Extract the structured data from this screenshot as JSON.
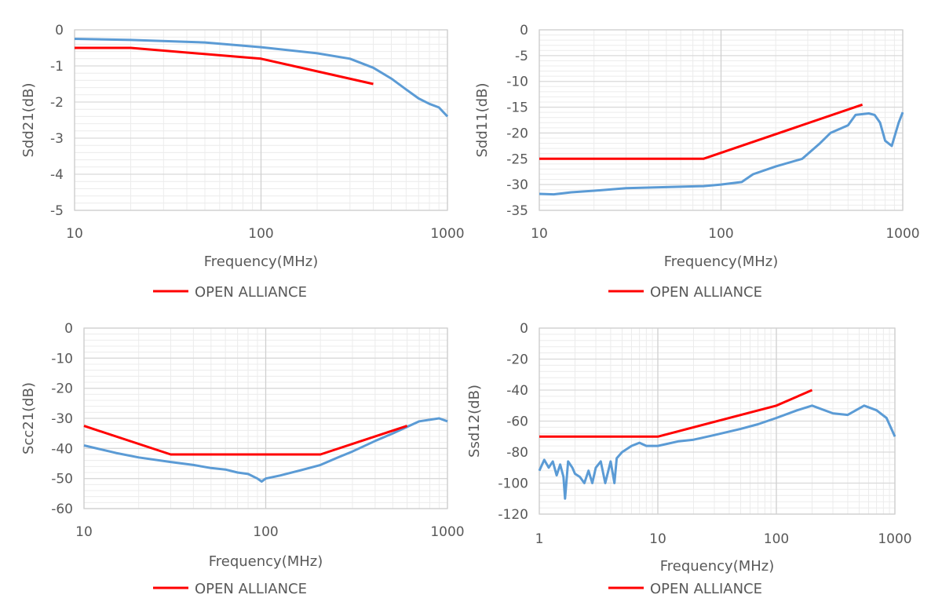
{
  "chart_data": [
    {
      "type": "line",
      "xlabel": "Frequency(MHz)",
      "ylabel": "Sdd21(dB)",
      "xscale": "log",
      "xlim": [
        10,
        1000
      ],
      "ylim": [
        -5,
        0
      ],
      "xticks": [
        "10",
        "100",
        "1000"
      ],
      "yticks": [
        "0",
        "-1",
        "-2",
        "-3",
        "-4",
        "-5"
      ],
      "grid": true,
      "legend": "bottom",
      "series": [
        {
          "color": "#5B9BD5",
          "x": [
            10,
            20,
            50,
            100,
            200,
            300,
            400,
            500,
            600,
            700,
            800,
            900,
            1000
          ],
          "y": [
            -0.25,
            -0.28,
            -0.35,
            -0.48,
            -0.65,
            -0.8,
            -1.05,
            -1.35,
            -1.65,
            -1.9,
            -2.05,
            -2.15,
            -2.4
          ]
        },
        {
          "name": "OPEN ALLIANCE",
          "color": "#FF0000",
          "x": [
            10,
            20,
            100,
            400
          ],
          "y": [
            -0.5,
            -0.5,
            -0.8,
            -1.5
          ]
        }
      ]
    },
    {
      "type": "line",
      "xlabel": "Frequency(MHz)",
      "ylabel": "Sdd11(dB)",
      "xscale": "log",
      "xlim": [
        10,
        1000
      ],
      "ylim": [
        -35,
        0
      ],
      "xticks": [
        "10",
        "100",
        "1000"
      ],
      "yticks": [
        "0",
        "-5",
        "-10",
        "-15",
        "-20",
        "-25",
        "-30",
        "-35"
      ],
      "grid": true,
      "legend": "bottom",
      "series": [
        {
          "color": "#5B9BD5",
          "x": [
            10,
            12,
            15,
            20,
            30,
            50,
            80,
            100,
            130,
            150,
            200,
            280,
            350,
            400,
            500,
            550,
            650,
            700,
            750,
            800,
            870,
            950,
            1000
          ],
          "y": [
            -31.8,
            -31.9,
            -31.5,
            -31.2,
            -30.7,
            -30.5,
            -30.3,
            -30,
            -29.5,
            -28,
            -26.5,
            -25,
            -22,
            -20,
            -18.5,
            -16.5,
            -16.2,
            -16.5,
            -18,
            -21.5,
            -22.5,
            -18,
            -16
          ]
        },
        {
          "name": "OPEN ALLIANCE",
          "color": "#FF0000",
          "x": [
            10,
            80,
            600
          ],
          "y": [
            -25,
            -25,
            -14.5
          ]
        }
      ]
    },
    {
      "type": "line",
      "xlabel": "Frequency(MHz)",
      "ylabel": "Scc21(dB)",
      "xscale": "log",
      "xlim": [
        10,
        1000
      ],
      "ylim": [
        -60,
        0
      ],
      "xticks": [
        "10",
        "100",
        "1000"
      ],
      "yticks": [
        "0",
        "-10",
        "-20",
        "-30",
        "-40",
        "-50",
        "-60"
      ],
      "grid": true,
      "legend": "bottom",
      "series": [
        {
          "color": "#5B9BD5",
          "x": [
            10,
            15,
            20,
            30,
            40,
            50,
            60,
            70,
            80,
            90,
            95,
            100,
            120,
            150,
            200,
            250,
            300,
            400,
            500,
            700,
            900,
            1000
          ],
          "y": [
            -39,
            -41.5,
            -43,
            -44.5,
            -45.5,
            -46.5,
            -47,
            -48,
            -48.5,
            -50,
            -51,
            -50,
            -49,
            -47.5,
            -45.5,
            -43,
            -41,
            -37.5,
            -35,
            -31,
            -30,
            -31
          ]
        },
        {
          "name": "OPEN ALLIANCE",
          "color": "#FF0000",
          "x": [
            10,
            30,
            200,
            600
          ],
          "y": [
            -32.5,
            -42,
            -42,
            -32.5
          ]
        }
      ]
    },
    {
      "type": "line",
      "xlabel": "Frequency(MHz)",
      "ylabel": "Ssd12(dB)",
      "xscale": "log",
      "xlim": [
        1,
        1000
      ],
      "ylim": [
        -120,
        0
      ],
      "xticks": [
        "1",
        "10",
        "100",
        "1000"
      ],
      "yticks": [
        "0",
        "-20",
        "-40",
        "-60",
        "-80",
        "-100",
        "-120"
      ],
      "grid": true,
      "legend": "bottom",
      "series": [
        {
          "color": "#5B9BD5",
          "x": [
            1,
            1.1,
            1.2,
            1.3,
            1.4,
            1.5,
            1.6,
            1.65,
            1.75,
            1.9,
            2.0,
            2.2,
            2.4,
            2.6,
            2.8,
            3.0,
            3.3,
            3.6,
            4.0,
            4.3,
            4.5,
            5,
            6,
            7,
            8,
            10,
            15,
            20,
            30,
            50,
            70,
            100,
            150,
            200,
            300,
            400,
            550,
            700,
            850,
            1000
          ],
          "y": [
            -92,
            -85,
            -90,
            -86,
            -95,
            -88,
            -96,
            -110,
            -86,
            -90,
            -94,
            -96,
            -100,
            -92,
            -100,
            -90,
            -86,
            -100,
            -86,
            -100,
            -84,
            -80,
            -76,
            -74,
            -76,
            -76,
            -73,
            -72,
            -69,
            -65,
            -62,
            -58,
            -53,
            -50,
            -55,
            -56,
            -50,
            -53,
            -58,
            -70
          ]
        },
        {
          "name": "OPEN ALLIANCE",
          "color": "#FF0000",
          "x": [
            1,
            10,
            100,
            200
          ],
          "y": [
            -70,
            -70,
            -50,
            -40
          ]
        }
      ]
    }
  ]
}
